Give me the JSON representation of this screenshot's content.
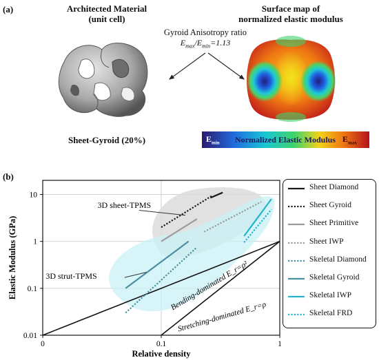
{
  "panel_a": {
    "label": "(a)",
    "left_title_1": "Architected Material",
    "left_title_2": "(unit cell)",
    "right_title_1": "Surface map of",
    "right_title_2": "normalized elastic modulus",
    "ratio_title": "Gyroid Anisotropy ratio",
    "ratio_expr": "E_max/E_min=1.13",
    "caption": "Sheet-Gyroid (20%)",
    "colorbar": {
      "label": "Normalized Elastic Modulus",
      "min_label": "E_min",
      "max_label": "E_max",
      "colors": [
        "#2a1a6e",
        "#1f6fe0",
        "#19c7d3",
        "#3fd36a",
        "#f2d31a",
        "#f07a12",
        "#b4121a"
      ]
    },
    "unit_cell_color": "#9a9a9a"
  },
  "panel_b": {
    "label": "(b)"
  },
  "chart_data": {
    "type": "line",
    "xlabel": "Relative density",
    "ylabel": "Elastic Modulus (GPa)",
    "xscale": "log",
    "yscale": "log",
    "xlim": [
      0.01,
      1
    ],
    "ylim": [
      0.01,
      20
    ],
    "xticks": [
      "0",
      "0.1",
      "1"
    ],
    "yticks": [
      "10",
      "1",
      "0.1",
      "0.01"
    ],
    "grid": true,
    "legend_position": "right",
    "series": [
      {
        "name": "Sheet Diamond",
        "style": "solid",
        "color": "#1a1a1a",
        "points": [
          [
            0.26,
            8.5
          ],
          [
            0.33,
            11
          ]
        ]
      },
      {
        "name": "Sheet Gyroid",
        "style": "dotted",
        "color": "#1a1a1a",
        "points": [
          [
            0.1,
            2
          ],
          [
            0.27,
            9.5
          ]
        ]
      },
      {
        "name": "Sheet Primitive",
        "style": "solid",
        "color": "#9a9a9a",
        "points": [
          [
            0.1,
            1
          ],
          [
            0.2,
            3
          ]
        ]
      },
      {
        "name": "Sheet IWP",
        "style": "dotted",
        "color": "#9a9a9a",
        "points": [
          [
            0.23,
            1.6
          ],
          [
            0.7,
            7
          ]
        ]
      },
      {
        "name": "Skeletal Diamond",
        "style": "dotted",
        "color": "#4a8f9e",
        "points": [
          [
            0.05,
            0.03
          ],
          [
            0.2,
            0.75
          ]
        ]
      },
      {
        "name": "Skeletal Gyroid",
        "style": "solid",
        "color": "#4a8f9e",
        "points": [
          [
            0.05,
            0.1
          ],
          [
            0.17,
            1
          ]
        ]
      },
      {
        "name": "Skeletal IWP",
        "style": "solid",
        "color": "#22b5cc",
        "points": [
          [
            0.5,
            1.3
          ],
          [
            0.85,
            8
          ]
        ]
      },
      {
        "name": "Skeletal FRD",
        "style": "dotted",
        "color": "#22b5cc",
        "points": [
          [
            0.5,
            0.95
          ],
          [
            0.85,
            4.8
          ]
        ]
      }
    ],
    "guide_lines": [
      {
        "label": "Bending-dominated E_r=ρ²",
        "exponent": 2
      },
      {
        "label": "Stretching-dominated E_r=ρ",
        "exponent": 1
      }
    ],
    "annotations": [
      {
        "text": "3D sheet-TPMS"
      },
      {
        "text": "3D strut-TPMS"
      }
    ],
    "region_colors": {
      "sheet": "#dcdcdc",
      "strut": "#c9f1f5"
    }
  }
}
